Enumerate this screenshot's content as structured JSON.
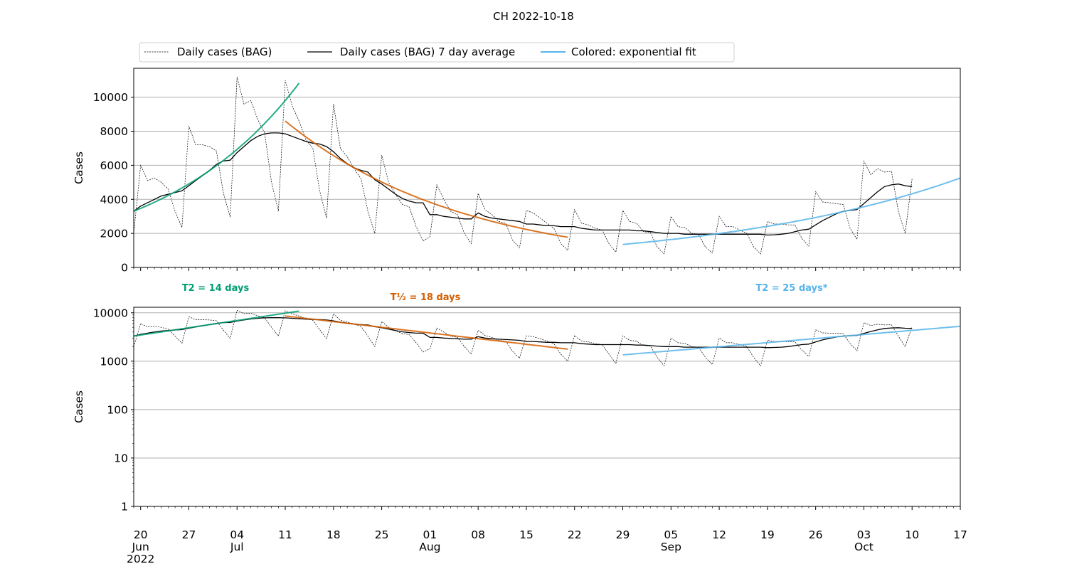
{
  "chart_data": [
    {
      "type": "line",
      "title": "CH 2022-10-18",
      "ylabel": "Cases",
      "yscale": "linear",
      "ylim": [
        0,
        11700
      ],
      "xlim": [
        "2022-06-19",
        "2022-10-17"
      ],
      "grid": "y",
      "yticks": [
        0,
        2000,
        4000,
        6000,
        8000,
        10000
      ],
      "ytick_labels": [
        "0",
        "2000",
        "4000",
        "6000",
        "8000",
        "10000"
      ],
      "legend": {
        "placement": "top-left",
        "entries": [
          {
            "label": "Daily cases (BAG)",
            "style": "dashed",
            "color": "#000000"
          },
          {
            "label": "Daily cases (BAG) 7 day average",
            "style": "solid",
            "color": "#000000"
          },
          {
            "label": "Colored: exponential fit",
            "style": "solid",
            "color": "#56b4e9"
          }
        ]
      }
    },
    {
      "type": "line",
      "ylabel": "Cases",
      "yscale": "log",
      "ylim": [
        1,
        13000
      ],
      "xlim": [
        "2022-06-19",
        "2022-10-17"
      ],
      "grid": "y",
      "yticks": [
        1,
        10,
        100,
        1000,
        10000
      ],
      "ytick_labels": [
        "1",
        "10",
        "100",
        "1000",
        "10000"
      ]
    }
  ],
  "series": {
    "start_date": "2022-06-19",
    "daily": [
      2000,
      6000,
      5100,
      5250,
      5000,
      4600,
      3300,
      2350,
      8300,
      7200,
      7200,
      7100,
      6850,
      4400,
      2950,
      11200,
      9600,
      9800,
      8700,
      7900,
      5000,
      3300,
      11000,
      9500,
      8600,
      7500,
      7000,
      4500,
      2900,
      9600,
      7000,
      6500,
      5800,
      5200,
      3300,
      2000,
      6600,
      5000,
      4300,
      3700,
      3550,
      2400,
      1550,
      1800,
      4850,
      4000,
      3300,
      3100,
      2000,
      1400,
      4350,
      3400,
      3100,
      2700,
      2600,
      1600,
      1150,
      3350,
      3200,
      2900,
      2600,
      2300,
      1400,
      1000,
      3400,
      2600,
      2500,
      2300,
      2200,
      1400,
      900,
      3350,
      2700,
      2600,
      2100,
      2050,
      1200,
      800,
      3000,
      2400,
      2350,
      2000,
      1950,
      1200,
      850,
      3000,
      2400,
      2400,
      2200,
      2000,
      1200,
      800,
      2700,
      2550,
      2550,
      2500,
      2500,
      1700,
      1250,
      4450,
      3850,
      3800,
      3750,
      3700,
      2300,
      1650,
      6250,
      5450,
      5800,
      5600,
      5650,
      3300,
      2000,
      5200
    ],
    "avg7": [
      3300,
      3600,
      3800,
      4000,
      4200,
      4300,
      4400,
      4500,
      4800,
      5100,
      5400,
      5700,
      6050,
      6250,
      6300,
      6750,
      7100,
      7450,
      7700,
      7850,
      7900,
      7900,
      7850,
      7700,
      7550,
      7400,
      7300,
      7250,
      7100,
      6800,
      6400,
      6100,
      5850,
      5700,
      5600,
      5150,
      4900,
      4600,
      4300,
      4050,
      3900,
      3800,
      3800,
      3100,
      3100,
      3000,
      2950,
      2900,
      2850,
      2850,
      3200,
      3000,
      2900,
      2850,
      2800,
      2750,
      2700,
      2550,
      2550,
      2500,
      2450,
      2450,
      2400,
      2400,
      2400,
      2300,
      2250,
      2200,
      2200,
      2200,
      2200,
      2200,
      2200,
      2150,
      2150,
      2100,
      2050,
      2000,
      2000,
      2000,
      1950,
      1950,
      1950,
      1950,
      1950,
      1950,
      1950,
      1950,
      1950,
      1950,
      1950,
      1950,
      1900,
      1920,
      1950,
      2000,
      2100,
      2200,
      2250,
      2500,
      2750,
      2950,
      3150,
      3300,
      3350,
      3400,
      3750,
      4100,
      4450,
      4750,
      4850,
      4900,
      4800,
      4750
    ]
  },
  "fits": [
    {
      "label": "T2 = 14 days",
      "start": "2022-06-19",
      "end": "2022-07-13",
      "start_value": 3300,
      "doubling_days": 14,
      "color": "#009e73"
    },
    {
      "label": "T½ = 18 days",
      "start": "2022-07-11",
      "end": "2022-08-21",
      "start_value": 8600,
      "doubling_days": -18,
      "color": "#d55e00"
    },
    {
      "label": "T2 = 25 days*",
      "start": "2022-08-29",
      "end": "2022-10-17",
      "start_value": 1350,
      "doubling_days": 25,
      "color": "#56b4e9"
    }
  ],
  "xaxis": {
    "ticks": [
      {
        "date": "2022-06-20",
        "day": "20",
        "month": "Jun",
        "year": "2022"
      },
      {
        "date": "2022-06-27",
        "day": "27"
      },
      {
        "date": "2022-07-04",
        "day": "04",
        "month": "Jul"
      },
      {
        "date": "2022-07-11",
        "day": "11"
      },
      {
        "date": "2022-07-18",
        "day": "18"
      },
      {
        "date": "2022-07-25",
        "day": "25"
      },
      {
        "date": "2022-08-01",
        "day": "01",
        "month": "Aug"
      },
      {
        "date": "2022-08-08",
        "day": "08"
      },
      {
        "date": "2022-08-15",
        "day": "15"
      },
      {
        "date": "2022-08-22",
        "day": "22"
      },
      {
        "date": "2022-08-29",
        "day": "29"
      },
      {
        "date": "2022-09-05",
        "day": "05",
        "month": "Sep"
      },
      {
        "date": "2022-09-12",
        "day": "12"
      },
      {
        "date": "2022-09-19",
        "day": "19"
      },
      {
        "date": "2022-09-26",
        "day": "26"
      },
      {
        "date": "2022-10-03",
        "day": "03",
        "month": "Oct"
      },
      {
        "date": "2022-10-10",
        "day": "10"
      },
      {
        "date": "2022-10-17",
        "day": "17"
      }
    ]
  }
}
